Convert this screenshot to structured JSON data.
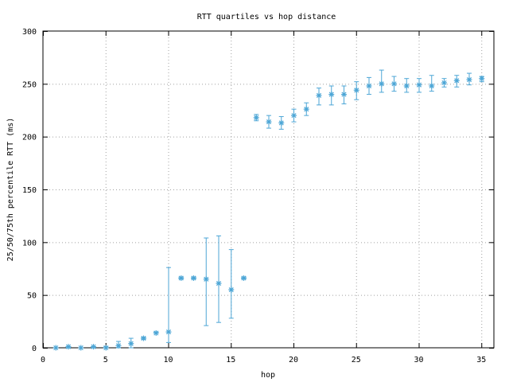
{
  "chart_data": {
    "type": "scatter",
    "title": "RTT quartiles vs hop distance",
    "xlabel": "hop",
    "ylabel": "25/50/75th percentile RTT (ms)",
    "xlim": [
      0,
      36
    ],
    "ylim": [
      0,
      300
    ],
    "xticks": [
      0,
      5,
      10,
      15,
      20,
      25,
      30,
      35
    ],
    "yticks": [
      0,
      50,
      100,
      150,
      200,
      250,
      300
    ],
    "grid": true,
    "legend": "none",
    "series": [
      {
        "color": "#4da6d6",
        "marker": "asterisk",
        "points": [
          {
            "x": 1,
            "q25": 0,
            "median": 0,
            "q75": 0
          },
          {
            "x": 2,
            "q25": 0,
            "median": 1,
            "q75": 1
          },
          {
            "x": 3,
            "q25": 0,
            "median": 0,
            "q75": 0
          },
          {
            "x": 4,
            "q25": 0,
            "median": 1,
            "q75": 1
          },
          {
            "x": 5,
            "q25": 0,
            "median": 0,
            "q75": 1
          },
          {
            "x": 6,
            "q25": 0,
            "median": 2,
            "q75": 6
          },
          {
            "x": 7,
            "q25": 0,
            "median": 4,
            "q75": 9
          },
          {
            "x": 8,
            "q25": 8,
            "median": 9,
            "q75": 10
          },
          {
            "x": 9,
            "q25": 14,
            "median": 14,
            "q75": 15
          },
          {
            "x": 10,
            "q25": 5,
            "median": 15,
            "q75": 76
          },
          {
            "x": 11,
            "q25": 65,
            "median": 66,
            "q75": 67
          },
          {
            "x": 12,
            "q25": 65,
            "median": 66,
            "q75": 67
          },
          {
            "x": 13,
            "q25": 21,
            "median": 65,
            "q75": 104
          },
          {
            "x": 14,
            "q25": 24,
            "median": 61,
            "q75": 106
          },
          {
            "x": 15,
            "q25": 28,
            "median": 55,
            "q75": 93
          },
          {
            "x": 16,
            "q25": 65,
            "median": 66,
            "q75": 67
          },
          {
            "x": 17,
            "q25": 215,
            "median": 218,
            "q75": 221
          },
          {
            "x": 18,
            "q25": 208,
            "median": 214,
            "q75": 220
          },
          {
            "x": 19,
            "q25": 207,
            "median": 213,
            "q75": 219
          },
          {
            "x": 20,
            "q25": 214,
            "median": 220,
            "q75": 226
          },
          {
            "x": 21,
            "q25": 220,
            "median": 226,
            "q75": 232
          },
          {
            "x": 22,
            "q25": 230,
            "median": 239,
            "q75": 246
          },
          {
            "x": 23,
            "q25": 230,
            "median": 240,
            "q75": 248
          },
          {
            "x": 24,
            "q25": 231,
            "median": 240,
            "q75": 248
          },
          {
            "x": 25,
            "q25": 235,
            "median": 244,
            "q75": 252
          },
          {
            "x": 26,
            "q25": 240,
            "median": 248,
            "q75": 256
          },
          {
            "x": 27,
            "q25": 242,
            "median": 250,
            "q75": 263
          },
          {
            "x": 28,
            "q25": 243,
            "median": 250,
            "q75": 257
          },
          {
            "x": 29,
            "q25": 242,
            "median": 248,
            "q75": 255
          },
          {
            "x": 30,
            "q25": 242,
            "median": 249,
            "q75": 255
          },
          {
            "x": 31,
            "q25": 243,
            "median": 248,
            "q75": 258
          },
          {
            "x": 32,
            "q25": 247,
            "median": 251,
            "q75": 255
          },
          {
            "x": 33,
            "q25": 247,
            "median": 253,
            "q75": 258
          },
          {
            "x": 34,
            "q25": 249,
            "median": 254,
            "q75": 260
          },
          {
            "x": 35,
            "q25": 252,
            "median": 255,
            "q75": 257
          }
        ]
      }
    ]
  }
}
